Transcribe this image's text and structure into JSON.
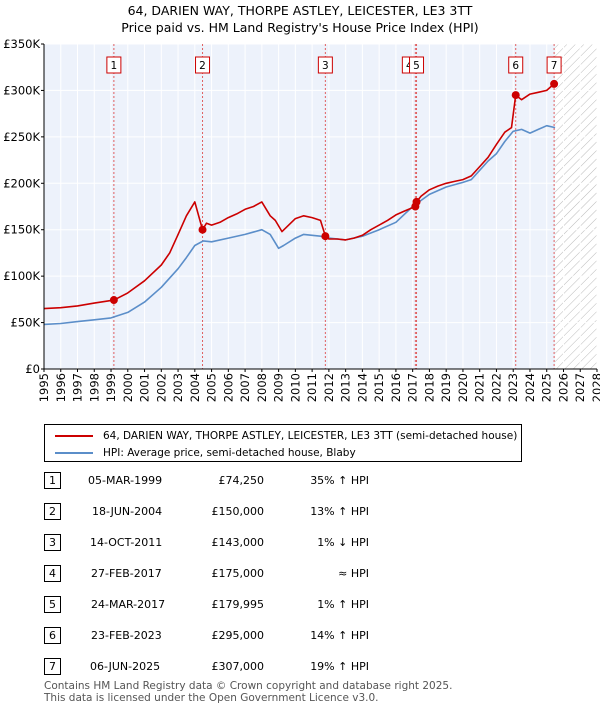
{
  "chart_data": {
    "type": "line",
    "title": "64, DARIEN WAY, THORPE ASTLEY, LEICESTER, LE3 3TT",
    "subtitle": "Price paid vs. HM Land Registry's House Price Index (HPI)",
    "xlim": [
      1995,
      2028
    ],
    "ylim": [
      0,
      350000
    ],
    "y_ticks": [
      0,
      50000,
      100000,
      150000,
      200000,
      250000,
      300000,
      350000
    ],
    "y_tick_labels": [
      "£0",
      "£50K",
      "£100K",
      "£150K",
      "£200K",
      "£250K",
      "£300K",
      "£350K"
    ],
    "x_ticks": [
      1995,
      1996,
      1997,
      1998,
      1999,
      2000,
      2001,
      2002,
      2003,
      2004,
      2005,
      2006,
      2007,
      2008,
      2009,
      2010,
      2011,
      2012,
      2013,
      2014,
      2015,
      2016,
      2017,
      2018,
      2019,
      2020,
      2021,
      2022,
      2023,
      2024,
      2025,
      2026,
      2027,
      2028
    ],
    "x_tick_labels": [
      "1995",
      "1996",
      "1997",
      "1998",
      "1999",
      "2000",
      "2001",
      "2002",
      "2003",
      "2004",
      "2005",
      "2006",
      "2007",
      "2008",
      "2009",
      "2010",
      "2011",
      "2012",
      "2013",
      "2014",
      "2015",
      "2016",
      "2017",
      "2018",
      "2019",
      "2020",
      "2021",
      "2022",
      "2023",
      "2024",
      "2025",
      "2026",
      "2027",
      "2028"
    ],
    "hatch_from": 2025.5,
    "series": [
      {
        "name": "64, DARIEN WAY, THORPE ASTLEY, LEICESTER, LE3 3TT (semi-detached house)",
        "color": "#cc0000",
        "x": [
          1995.0,
          1996.0,
          1997.0,
          1998.0,
          1999.17,
          2000.0,
          2001.0,
          2002.0,
          2002.5,
          2003.0,
          2003.5,
          2004.0,
          2004.46,
          2004.7,
          2005.0,
          2005.5,
          2006.0,
          2006.5,
          2007.0,
          2007.5,
          2008.0,
          2008.5,
          2008.8,
          2009.2,
          2009.6,
          2010.0,
          2010.5,
          2011.0,
          2011.5,
          2011.79,
          2012.0,
          2012.5,
          2013.0,
          2013.5,
          2014.0,
          2014.5,
          2015.0,
          2015.5,
          2016.0,
          2016.5,
          2017.16,
          2017.23,
          2017.5,
          2018.0,
          2018.5,
          2019.0,
          2019.5,
          2020.0,
          2020.5,
          2021.0,
          2021.5,
          2022.0,
          2022.5,
          2022.9,
          2023.15,
          2023.5,
          2024.0,
          2024.5,
          2025.0,
          2025.44,
          2025.6
        ],
        "values": [
          65000,
          66000,
          68000,
          71000,
          74250,
          82000,
          95000,
          112000,
          125000,
          145000,
          165000,
          180000,
          150000,
          157000,
          155000,
          158000,
          163000,
          167000,
          172000,
          175000,
          180000,
          165000,
          160000,
          148000,
          155000,
          162000,
          165000,
          163000,
          160000,
          143000,
          140000,
          140000,
          139000,
          141000,
          144000,
          150000,
          155000,
          160000,
          166000,
          170000,
          175000,
          179995,
          186000,
          193000,
          197000,
          200000,
          202000,
          204000,
          208000,
          218000,
          228000,
          242000,
          255000,
          260000,
          295000,
          290000,
          296000,
          298000,
          300000,
          307000,
          308000
        ]
      },
      {
        "name": "HPI: Average price, semi-detached house, Blaby",
        "color": "#5b8ec9",
        "x": [
          1995.0,
          1996.0,
          1997.0,
          1998.0,
          1999.0,
          2000.0,
          2001.0,
          2002.0,
          2003.0,
          2003.5,
          2004.0,
          2004.5,
          2005.0,
          2006.0,
          2007.0,
          2008.0,
          2008.5,
          2009.0,
          2009.3,
          2010.0,
          2010.5,
          2011.0,
          2011.5,
          2012.0,
          2013.0,
          2014.0,
          2015.0,
          2016.0,
          2017.0,
          2018.0,
          2019.0,
          2020.0,
          2020.5,
          2021.0,
          2021.5,
          2022.0,
          2022.5,
          2023.0,
          2023.5,
          2024.0,
          2024.5,
          2025.0,
          2025.5
        ],
        "values": [
          48000,
          49000,
          51000,
          53000,
          55000,
          61000,
          72000,
          88000,
          108000,
          120000,
          133000,
          138000,
          137000,
          141000,
          145000,
          150000,
          145000,
          130000,
          133000,
          141000,
          145000,
          144000,
          143000,
          141000,
          139000,
          143000,
          150000,
          158000,
          175000,
          188000,
          196000,
          201000,
          204000,
          214000,
          224000,
          232000,
          245000,
          256000,
          258000,
          254000,
          258000,
          262000,
          260000
        ]
      }
    ],
    "sale_markers": [
      {
        "label": "1",
        "x": 1999.17,
        "y": 74250
      },
      {
        "label": "2",
        "x": 2004.46,
        "y": 150000
      },
      {
        "label": "3",
        "x": 2011.79,
        "y": 143000
      },
      {
        "label": "4",
        "x": 2017.16,
        "y": 175000
      },
      {
        "label": "5",
        "x": 2017.23,
        "y": 179995
      },
      {
        "label": "6",
        "x": 2023.15,
        "y": 295000
      },
      {
        "label": "7",
        "x": 2025.44,
        "y": 307000
      }
    ]
  },
  "legend": {
    "property_label": "64, DARIEN WAY, THORPE ASTLEY, LEICESTER, LE3 3TT (semi-detached house)",
    "hpi_label": "HPI: Average price, semi-detached house, Blaby"
  },
  "sales": [
    {
      "num": "1",
      "date": "05-MAR-1999",
      "price": "£74,250",
      "hpi": "35% ↑ HPI"
    },
    {
      "num": "2",
      "date": "18-JUN-2004",
      "price": "£150,000",
      "hpi": "13% ↑ HPI"
    },
    {
      "num": "3",
      "date": "14-OCT-2011",
      "price": "£143,000",
      "hpi": "1% ↓ HPI"
    },
    {
      "num": "4",
      "date": "27-FEB-2017",
      "price": "£175,000",
      "hpi": "≈ HPI"
    },
    {
      "num": "5",
      "date": "24-MAR-2017",
      "price": "£179,995",
      "hpi": "1% ↑ HPI"
    },
    {
      "num": "6",
      "date": "23-FEB-2023",
      "price": "£295,000",
      "hpi": "14% ↑ HPI"
    },
    {
      "num": "7",
      "date": "06-JUN-2025",
      "price": "£307,000",
      "hpi": "19% ↑ HPI"
    }
  ],
  "footer": {
    "line1": "Contains HM Land Registry data © Crown copyright and database right 2025.",
    "line2": "This data is licensed under the Open Government Licence v3.0."
  }
}
